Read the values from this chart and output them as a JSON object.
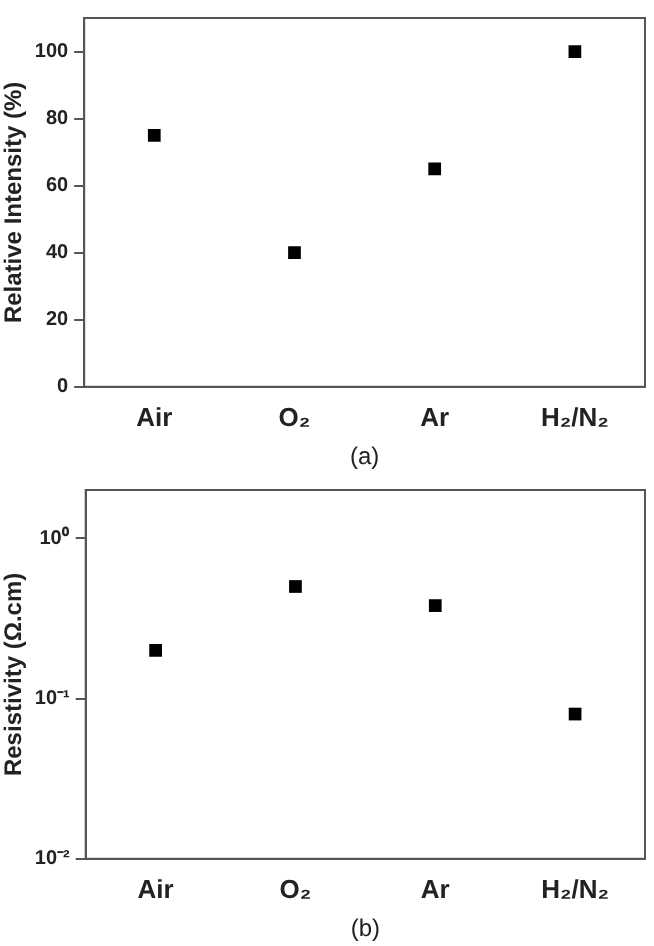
{
  "chart_data": [
    {
      "type": "scatter",
      "ylabel": "Relative Intensity (%)",
      "categories": [
        "Air",
        "O₂",
        "Ar",
        "H₂/N₂"
      ],
      "marker": "square",
      "grid": false,
      "legend": false,
      "series": [
        {
          "color": "#000000",
          "values": [
            75,
            40,
            65,
            100
          ]
        }
      ],
      "ylim": [
        0,
        110
      ],
      "yticks": [
        0,
        20,
        40,
        60,
        80,
        100
      ],
      "annotations": [
        "(a)"
      ]
    },
    {
      "type": "scatter",
      "ylabel": "Resistivity (Ω.cm)",
      "categories": [
        "Air",
        "O₂",
        "Ar",
        "H₂/N₂"
      ],
      "marker": "square",
      "grid": false,
      "legend": false,
      "log": "y",
      "series": [
        {
          "color": "#000000",
          "values": [
            0.2,
            0.5,
            0.38,
            0.08
          ]
        }
      ],
      "ylim": [
        0.01,
        2
      ],
      "yticks": [
        {
          "value": 0.01,
          "label": "10⁻²"
        },
        {
          "value": 0.1,
          "label": "10⁻¹"
        },
        {
          "value": 1,
          "label": "10⁰"
        }
      ],
      "annotations": [
        "(b)"
      ]
    }
  ]
}
